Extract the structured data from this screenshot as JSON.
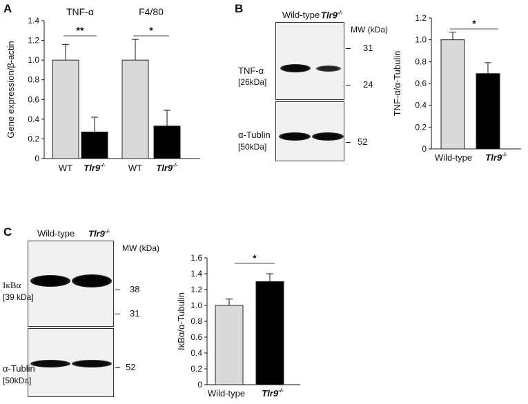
{
  "panels": {
    "a": {
      "letter": "A"
    },
    "b": {
      "letter": "B"
    },
    "c": {
      "letter": "C"
    }
  },
  "blot_b": {
    "lane_labels": [
      "Wild-type",
      "Tlr9"
    ],
    "lane2_superscript": "-/-",
    "mw_header": "MW (kDa)",
    "top_markers": [
      "31",
      "24"
    ],
    "bottom_markers": [
      "52"
    ],
    "top_protein": "TNF-α",
    "top_size": "[26kDa]",
    "bottom_protein": "α-Tublin",
    "bottom_size": "[50kDa]"
  },
  "blot_c": {
    "lane_labels": [
      "Wild-type",
      "Tlr9"
    ],
    "lane2_superscript": "-/-",
    "mw_header": "MW (kDa)",
    "top_markers": [
      "38",
      "31"
    ],
    "bottom_markers": [
      "52"
    ],
    "top_protein": "IκBα",
    "top_size": "[39 kDa]",
    "bottom_protein": "α-Tublin",
    "bottom_size": "[50kDa]"
  },
  "chart_data": [
    {
      "id": "A",
      "type": "bar",
      "ylabel": "Gene expression/β-actin",
      "ylim": [
        0,
        1.4
      ],
      "yticks": [
        "0",
        "0.2",
        "0.4",
        "0.6",
        "0.8",
        "1.0",
        "1.2",
        "1.4"
      ],
      "groups": [
        {
          "title": "TNF-α",
          "categories": [
            "WT",
            "Tlr9"
          ],
          "values": [
            1.0,
            0.27
          ],
          "errors": [
            0.16,
            0.15
          ],
          "significance": "**"
        },
        {
          "title": "F4/80",
          "categories": [
            "WT",
            "Tlr9"
          ],
          "values": [
            1.0,
            0.33
          ],
          "errors": [
            0.21,
            0.16
          ],
          "significance": "*"
        }
      ],
      "ko_superscript": "-/-",
      "colors": [
        "#d9d9d9",
        "#000000"
      ]
    },
    {
      "id": "B",
      "type": "bar",
      "ylabel": "TNF-α/α-Tubulin",
      "ylim": [
        0,
        1.2
      ],
      "yticks": [
        "0",
        "0.2",
        "0.4",
        "0.6",
        "0.8",
        "1.0",
        "1.2"
      ],
      "categories": [
        "Wild-type",
        "Tlr9"
      ],
      "ko_superscript": "-/-",
      "values": [
        1.0,
        0.69
      ],
      "errors": [
        0.07,
        0.1
      ],
      "significance": "*",
      "colors": [
        "#d9d9d9",
        "#000000"
      ]
    },
    {
      "id": "C",
      "type": "bar",
      "ylabel": "IκBα/α-Tubulin",
      "ylim": [
        0,
        1.6
      ],
      "yticks": [
        "0",
        "0.2",
        "0.4",
        "0.6",
        "0.8",
        "1.0",
        "1.2",
        "1.4",
        "1.6"
      ],
      "categories": [
        "Wild-type",
        "Tlr9"
      ],
      "ko_superscript": "-/-",
      "values": [
        1.0,
        1.3
      ],
      "errors": [
        0.08,
        0.1
      ],
      "significance": "*",
      "colors": [
        "#d9d9d9",
        "#000000"
      ]
    }
  ]
}
